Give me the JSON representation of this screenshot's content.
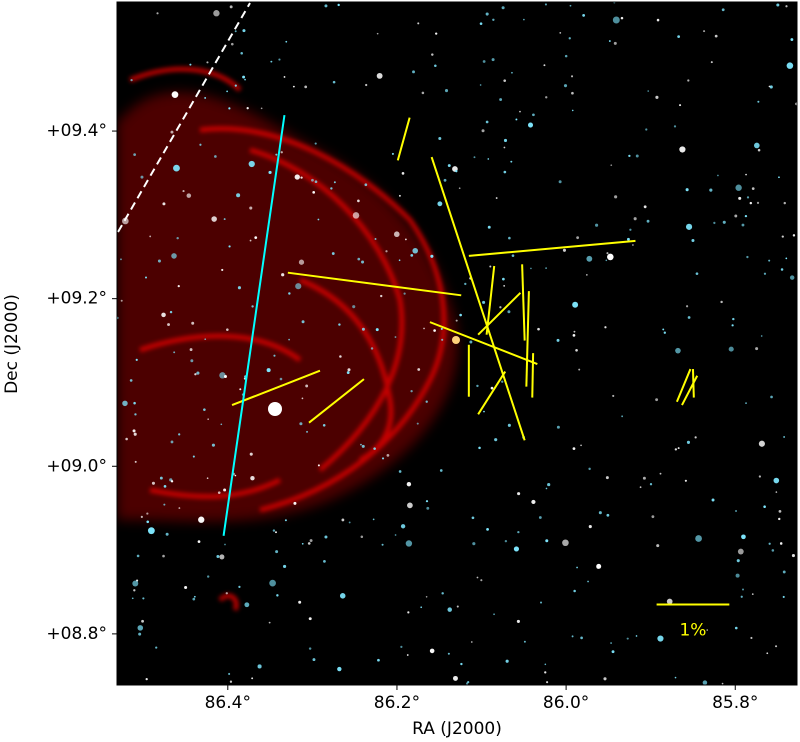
{
  "chart_data": {
    "type": "vector",
    "xlabel": "RA (J2000)",
    "ylabel": "Dec (J2000)",
    "xlim": [
      86.531,
      85.727
    ],
    "ylim": [
      8.739,
      9.554
    ],
    "xticks": [
      {
        "value": 86.4,
        "label": "86.4°"
      },
      {
        "value": 86.2,
        "label": "86.2°"
      },
      {
        "value": 86.0,
        "label": "86.0°"
      },
      {
        "value": 85.8,
        "label": "85.8°"
      }
    ],
    "yticks": [
      {
        "value": 8.8,
        "label": "+08.8°"
      },
      {
        "value": 9.0,
        "label": "+09.0°"
      },
      {
        "value": 9.2,
        "label": "+09.2°"
      },
      {
        "value": 9.4,
        "label": "+09.4°"
      }
    ],
    "vector_color": "#ffff00",
    "vectors": [
      {
        "ra": [
          86.199,
          86.185
        ],
        "dec": [
          9.365,
          9.416
        ]
      },
      {
        "ra": [
          86.159,
          86.049
        ],
        "dec": [
          9.369,
          9.031
        ]
      },
      {
        "ra": [
          86.115,
          85.918
        ],
        "dec": [
          9.251,
          9.269
        ]
      },
      {
        "ra": [
          86.329,
          86.124
        ],
        "dec": [
          9.231,
          9.204
        ]
      },
      {
        "ra": [
          86.161,
          86.034
        ],
        "dec": [
          9.172,
          9.122
        ]
      },
      {
        "ra": [
          86.104,
          86.054
        ],
        "dec": [
          9.157,
          9.207
        ]
      },
      {
        "ra": [
          86.094,
          86.085
        ],
        "dec": [
          9.157,
          9.239
        ]
      },
      {
        "ra": [
          86.052,
          86.049
        ],
        "dec": [
          9.241,
          9.15
        ]
      },
      {
        "ra": [
          86.044,
          86.047
        ],
        "dec": [
          9.209,
          9.095
        ]
      },
      {
        "ra": [
          86.039,
          86.04
        ],
        "dec": [
          9.135,
          9.082
        ]
      },
      {
        "ra": [
          86.115,
          86.115
        ],
        "dec": [
          9.145,
          9.083
        ]
      },
      {
        "ra": [
          86.104,
          86.072
        ],
        "dec": [
          9.062,
          9.113
        ]
      },
      {
        "ra": [
          86.395,
          86.291
        ],
        "dec": [
          9.073,
          9.114
        ]
      },
      {
        "ra": [
          86.304,
          86.239
        ],
        "dec": [
          9.052,
          9.104
        ]
      },
      {
        "ra": [
          85.869,
          85.853
        ],
        "dec": [
          9.077,
          9.116
        ]
      },
      {
        "ra": [
          85.863,
          85.845
        ],
        "dec": [
          9.073,
          9.108
        ]
      },
      {
        "ra": [
          85.85,
          85.849
        ],
        "dec": [
          9.116,
          9.082
        ]
      }
    ],
    "mean_vector": {
      "color": "#00ffff",
      "ra": [
        86.333,
        86.405
      ],
      "dec": [
        9.419,
        8.917
      ]
    },
    "scale_bar": {
      "label": "1%",
      "color": "#ffff00",
      "ra": [
        85.893,
        85.807
      ],
      "dec": [
        8.835,
        8.835
      ]
    }
  }
}
